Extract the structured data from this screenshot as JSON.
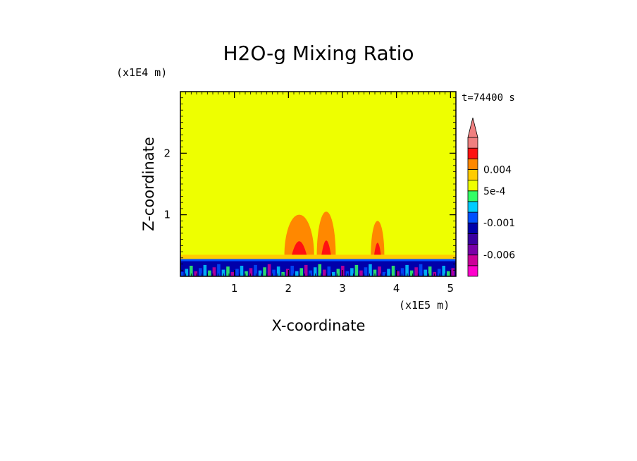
{
  "chart_data": {
    "type": "heatmap",
    "title": "H2O-g Mixing Ratio",
    "time_label": "t=74400 s",
    "xlabel": "X-coordinate",
    "ylabel": "Z-coordinate",
    "x_scale_label": "(x1E5 m)",
    "y_scale_label": "(x1E4 m)",
    "xlim": [
      0,
      5.1
    ],
    "ylim": [
      0,
      3.0
    ],
    "x_ticks": [
      1,
      2,
      3,
      4,
      5
    ],
    "x_tick_labels": [
      "1",
      "2",
      "3",
      "4",
      "5"
    ],
    "y_ticks": [
      1,
      2
    ],
    "y_tick_labels": [
      "1",
      "2"
    ],
    "background_level_color": "#eeff00",
    "colorbar": {
      "levels": [
        {
          "color": "#ff00cc"
        },
        {
          "color": "#cc0099"
        },
        {
          "color": "#7a00a8"
        },
        {
          "color": "#3a00a0"
        },
        {
          "color": "#0000aa"
        },
        {
          "color": "#0050ff"
        },
        {
          "color": "#00ccff"
        },
        {
          "color": "#33ff66"
        },
        {
          "color": "#eeff00"
        },
        {
          "color": "#ffcc00"
        },
        {
          "color": "#ff8800"
        },
        {
          "color": "#ff1111"
        },
        {
          "color": "#f08080"
        }
      ],
      "tick_labels": [
        {
          "after_level": 2,
          "text": "-0.006"
        },
        {
          "after_level": 5,
          "text": "-0.001"
        },
        {
          "after_level": 8,
          "text": "5e-4"
        },
        {
          "after_level": 10,
          "text": "0.004"
        }
      ],
      "overflow_triangle_color": "#f08080"
    },
    "surface_layer": {
      "z_top": 0.28,
      "colors": [
        "#0000aa",
        "#0050ff",
        "#00ccff",
        "#33ff66",
        "#cc0099"
      ]
    },
    "features": [
      {
        "name": "orange-band",
        "x_range": [
          0,
          5.1
        ],
        "z_range": [
          0.28,
          0.35
        ],
        "color": "#ffcc00"
      },
      {
        "name": "plume-1",
        "x_center": 2.2,
        "x_width": 0.55,
        "z_top": 1.0,
        "color": "#ff8800"
      },
      {
        "name": "plume-2",
        "x_center": 2.7,
        "x_width": 0.35,
        "z_top": 1.05,
        "color": "#ff8800"
      },
      {
        "name": "plume-3",
        "x_center": 3.65,
        "x_width": 0.25,
        "z_top": 0.9,
        "color": "#ff8800"
      }
    ]
  }
}
